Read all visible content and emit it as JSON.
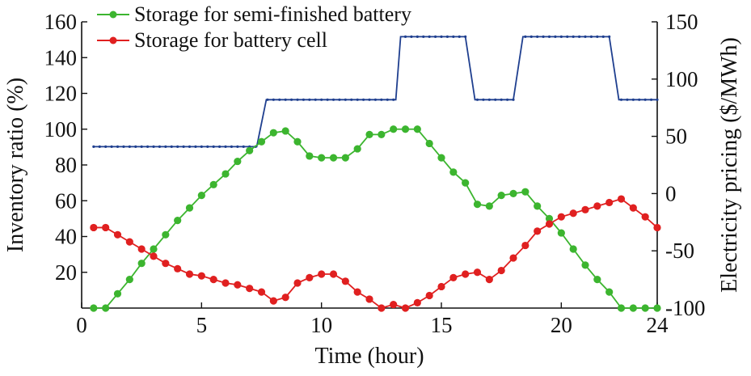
{
  "chart_data": {
    "type": "line",
    "xlabel": "Time (hour)",
    "ylabel_left": "Inventory ratio (%)",
    "ylabel_right": "Electricity pricing ($/MWh)",
    "xlim": [
      0,
      24
    ],
    "ylim_left": [
      0,
      160
    ],
    "ylim_right": [
      -100,
      150
    ],
    "x_ticks": [
      0,
      5,
      10,
      15,
      20,
      24
    ],
    "y_ticks_left": [
      20,
      40,
      60,
      80,
      100,
      120,
      140,
      160
    ],
    "y_ticks_right": [
      -100,
      -50,
      0,
      50,
      100,
      150
    ],
    "legend_position": "top-left",
    "grid": false,
    "series": [
      {
        "name": "Storage for semi-finished battery",
        "axis": "left",
        "color": "#3cb52f",
        "marker": "circle",
        "x": [
          0.5,
          1,
          1.5,
          2,
          2.5,
          3,
          3.5,
          4,
          4.5,
          5,
          5.5,
          6,
          6.5,
          7,
          7.5,
          8,
          8.5,
          9,
          9.5,
          10,
          10.5,
          11,
          11.5,
          12,
          12.5,
          13,
          13.5,
          14,
          14.5,
          15,
          15.5,
          16,
          16.5,
          17,
          17.5,
          18,
          18.5,
          19,
          19.5,
          20,
          20.5,
          21,
          21.5,
          22,
          22.5,
          23,
          23.5,
          24
        ],
        "values": [
          0,
          0,
          8,
          16,
          25,
          33,
          41,
          49,
          56,
          63,
          69,
          75,
          82,
          88,
          93,
          98,
          99,
          93,
          85,
          84,
          84,
          84,
          89,
          97,
          97,
          100,
          100,
          100,
          92,
          84,
          76,
          70,
          58,
          57,
          63,
          64,
          65,
          57,
          50,
          42,
          33,
          24,
          16,
          9,
          0,
          0,
          0,
          0
        ]
      },
      {
        "name": "Storage for battery cell",
        "axis": "left",
        "color": "#e02020",
        "marker": "circle",
        "x": [
          0.5,
          1,
          1.5,
          2,
          2.5,
          3,
          3.5,
          4,
          4.5,
          5,
          5.5,
          6,
          6.5,
          7,
          7.5,
          8,
          8.5,
          9,
          9.5,
          10,
          10.5,
          11,
          11.5,
          12,
          12.5,
          13,
          13.5,
          14,
          14.5,
          15,
          15.5,
          16,
          16.5,
          17,
          17.5,
          18,
          18.5,
          19,
          19.5,
          20,
          20.5,
          21,
          21.5,
          22,
          22.5,
          23,
          23.5,
          24
        ],
        "values": [
          45,
          45,
          41,
          37,
          33,
          29,
          25,
          22,
          19,
          18,
          16,
          14,
          13,
          11,
          9,
          4,
          6,
          14,
          17,
          19,
          19,
          15,
          9,
          5,
          0,
          2,
          0,
          3,
          7,
          12,
          17,
          19,
          20,
          16,
          21,
          28,
          35,
          43,
          47,
          51,
          53,
          55,
          57,
          59,
          61,
          56,
          51,
          45
        ]
      },
      {
        "name": "Electricity pricing",
        "axis": "right",
        "color": "#1f3f8f",
        "marker": "small-dot",
        "x": [
          0.5,
          7.3,
          7.7,
          13.1,
          13.3,
          16.0,
          16.4,
          18.0,
          18.4,
          22.0,
          22.4,
          24
        ],
        "values": [
          41,
          41,
          82,
          82,
          137,
          137,
          82,
          82,
          137,
          137,
          82,
          82
        ]
      }
    ]
  }
}
